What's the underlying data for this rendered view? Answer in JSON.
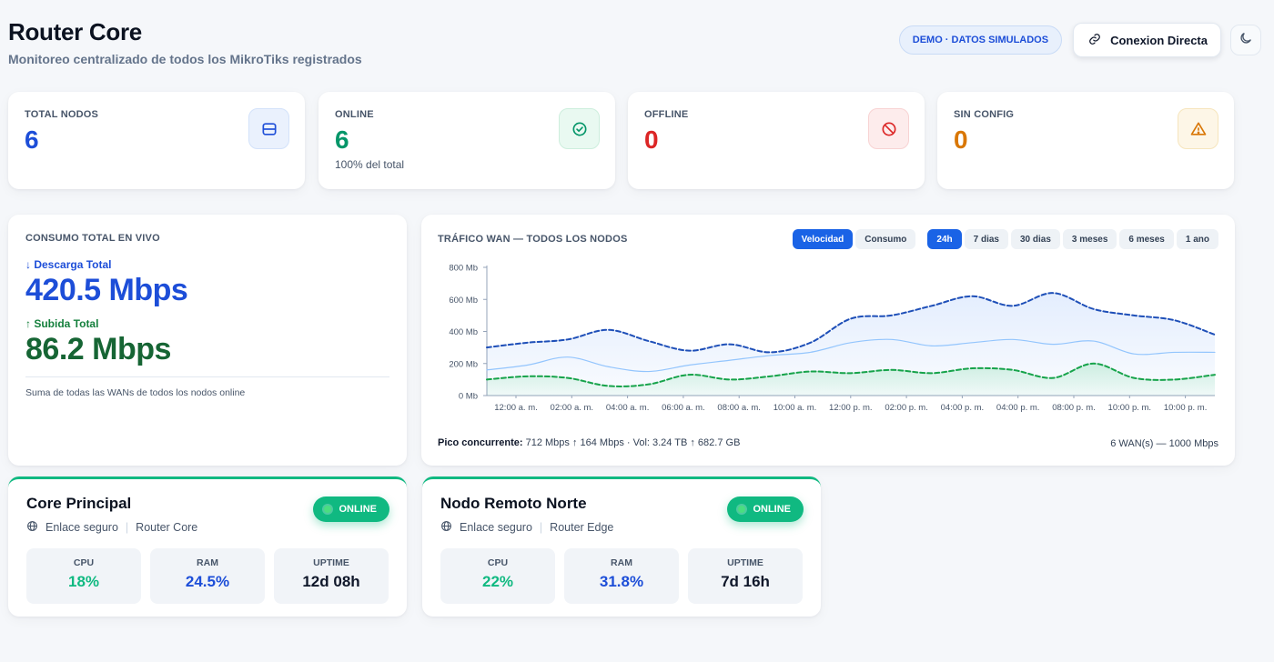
{
  "header": {
    "title": "Router Core",
    "subtitle": "Monitoreo centralizado de todos los MikroTiks registrados",
    "demo_badge": "DEMO · DATOS SIMULADOS",
    "connect_label": "Conexion Directa",
    "connect_icon": "link-icon",
    "theme_icon": "moon-icon"
  },
  "stats": [
    {
      "label": "TOTAL NODOS",
      "value": "6",
      "note": "",
      "color": "#1d4ed8",
      "icon": "server-icon"
    },
    {
      "label": "ONLINE",
      "value": "6",
      "note": "100% del total",
      "color": "#059669",
      "icon": "check-circle-icon"
    },
    {
      "label": "OFFLINE",
      "value": "0",
      "note": "",
      "color": "#dc2626",
      "icon": "ban-icon"
    },
    {
      "label": "SIN CONFIG",
      "value": "0",
      "note": "",
      "color": "#d97706",
      "icon": "warning-icon"
    }
  ],
  "live": {
    "title": "CONSUMO TOTAL EN VIVO",
    "download_label": "↓ Descarga Total",
    "download_value": "420.5 Mbps",
    "upload_label": "↑ Subida Total",
    "upload_value": "86.2 Mbps",
    "note": "Suma de todas las WANs de todos los nodos online"
  },
  "traffic": {
    "title": "TRÁFICO WAN — TODOS LOS NODOS",
    "mode_chips": [
      "Velocidad",
      "Consumo"
    ],
    "range_chips": [
      "24h",
      "7 dias",
      "30 dias",
      "3 meses",
      "6 meses",
      "1 ano"
    ],
    "active_mode": 0,
    "active_range": 0,
    "footer_label": "Pico concurrente:",
    "footer_value": "712 Mbps ↑ 164 Mbps · Vol: 3.24 TB ↑ 682.7 GB",
    "footer_right": "6 WAN(s) — 1000 Mbps"
  },
  "chart_data": {
    "type": "area",
    "title": "TRÁFICO WAN — TODOS LOS NODOS",
    "xlabel": "",
    "ylabel": "",
    "x_ticks": [
      "12:00 a. m.",
      "02:00 a. m.",
      "04:00 a. m.",
      "06:00 a. m.",
      "08:00 a. m.",
      "10:00 a. m.",
      "12:00 p. m.",
      "02:00 p. m.",
      "04:00 p. m.",
      "04:00 p. m.",
      "08:00 p. m.",
      "10:00 p. m.",
      "10:00 p. m."
    ],
    "y_ticks": [
      "0 Mb",
      "200 Mb",
      "400 Mb",
      "600 Mb",
      "800 Mb"
    ],
    "ylim": [
      0,
      800
    ],
    "grid": false,
    "series": [
      {
        "color": "#1e4fb8",
        "style": "dashed",
        "values": [
          300,
          330,
          350,
          410,
          340,
          280,
          320,
          270,
          330,
          480,
          500,
          560,
          620,
          560,
          640,
          540,
          500,
          470,
          380
        ]
      },
      {
        "color": "#93c5fd",
        "style": "solid",
        "values": [
          160,
          190,
          240,
          180,
          150,
          190,
          220,
          250,
          270,
          330,
          350,
          310,
          330,
          350,
          320,
          340,
          260,
          270,
          270
        ]
      },
      {
        "color": "#16a34a",
        "style": "dashed",
        "values": [
          100,
          120,
          110,
          60,
          70,
          130,
          100,
          120,
          150,
          140,
          160,
          140,
          170,
          160,
          110,
          200,
          110,
          100,
          130
        ]
      }
    ]
  },
  "nodes": [
    {
      "name": "Core Principal",
      "link": "Enlace seguro",
      "model": "Router Core",
      "status": "ONLINE",
      "metrics": [
        {
          "label": "CPU",
          "value": "18%",
          "color": "#10b981"
        },
        {
          "label": "RAM",
          "value": "24.5%",
          "color": "#1d4ed8"
        },
        {
          "label": "UPTIME",
          "value": "12d 08h",
          "color": "#0f172a"
        }
      ]
    },
    {
      "name": "Nodo Remoto Norte",
      "link": "Enlace seguro",
      "model": "Router Edge",
      "status": "ONLINE",
      "metrics": [
        {
          "label": "CPU",
          "value": "22%",
          "color": "#10b981"
        },
        {
          "label": "RAM",
          "value": "31.8%",
          "color": "#1d4ed8"
        },
        {
          "label": "UPTIME",
          "value": "7d 16h",
          "color": "#0f172a"
        }
      ]
    }
  ]
}
